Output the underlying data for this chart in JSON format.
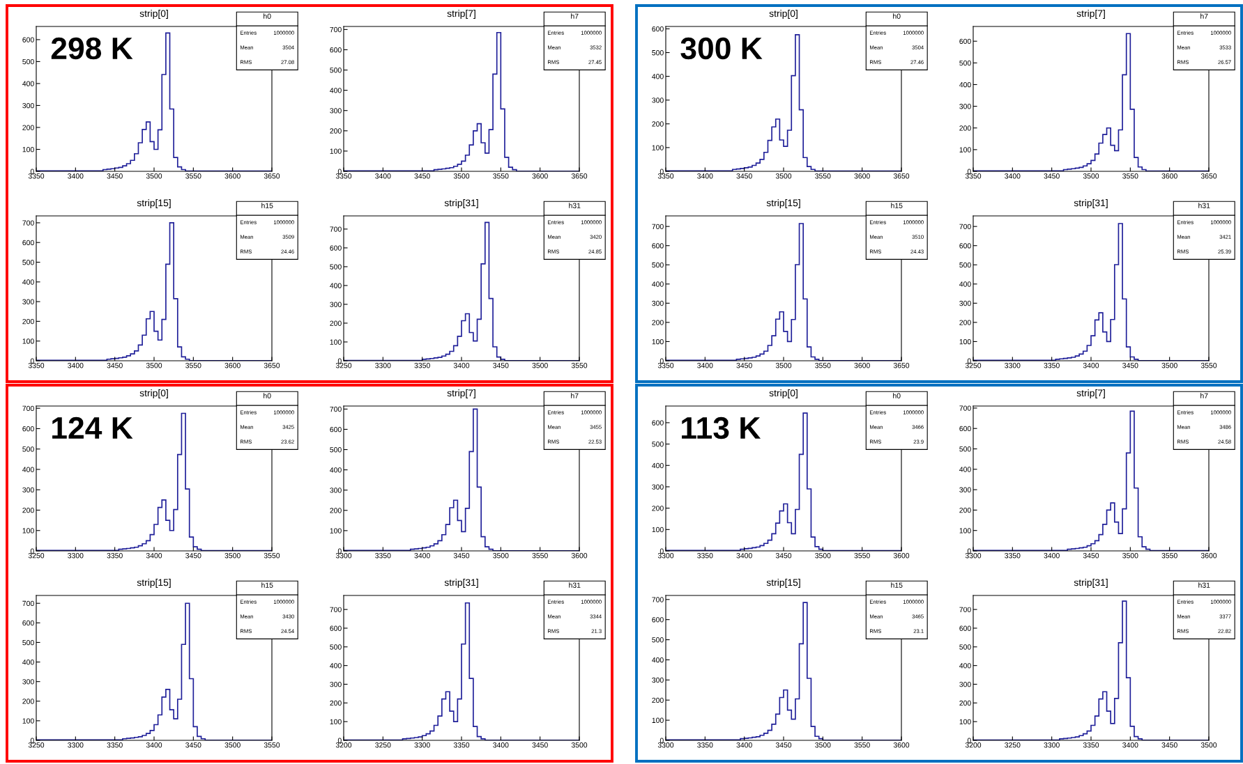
{
  "chart_data": [
    {
      "type": "histogram",
      "title": "strip[0]",
      "color": "#1f1f99",
      "xlim": [
        3350,
        3650
      ],
      "xticks": [
        3350,
        3400,
        3450,
        3500,
        3550,
        3600,
        3650
      ],
      "ylim": [
        0,
        660
      ],
      "yticks": [
        0,
        100,
        200,
        300,
        400,
        500,
        600
      ],
      "grid": false,
      "annotations": [
        "h0",
        "Entries",
        "1000000",
        "Mean",
        "3504",
        "RMS",
        "27.08",
        "298 K"
      ],
      "bins": [
        3350,
        3435,
        3440,
        3445,
        3450,
        3455,
        3460,
        3465,
        3470,
        3475,
        3480,
        3485,
        3490,
        3495,
        3500,
        3505,
        3510,
        3515,
        3520,
        3525,
        3530,
        3535,
        3540,
        3650
      ],
      "values": [
        2,
        8,
        10,
        12,
        15,
        18,
        25,
        35,
        50,
        80,
        130,
        191,
        225,
        135,
        100,
        189,
        441,
        630,
        284,
        63,
        20,
        8,
        1
      ]
    },
    {
      "type": "histogram",
      "title": "strip[7]",
      "color": "#1f1f99",
      "xlim": [
        3350,
        3650
      ],
      "xticks": [
        3350,
        3400,
        3450,
        3500,
        3550,
        3600,
        3650
      ],
      "ylim": [
        0,
        715
      ],
      "yticks": [
        0,
        100,
        200,
        300,
        400,
        500,
        600,
        700
      ],
      "grid": false,
      "annotations": [
        "h7",
        "Entries",
        "1000000",
        "Mean",
        "3532",
        "RMS",
        "27.45"
      ],
      "bins": [
        3350,
        3465,
        3470,
        3475,
        3480,
        3485,
        3490,
        3495,
        3500,
        3505,
        3510,
        3515,
        3520,
        3525,
        3530,
        3535,
        3540,
        3545,
        3550,
        3555,
        3560,
        3565,
        3570,
        3650
      ],
      "values": [
        2,
        8,
        10,
        12,
        15,
        18,
        25,
        35,
        50,
        80,
        130,
        200,
        235,
        141,
        90,
        206,
        480,
        685,
        308,
        69,
        20,
        8,
        1
      ]
    },
    {
      "type": "histogram",
      "title": "strip[15]",
      "color": "#1f1f99",
      "xlim": [
        3350,
        3650
      ],
      "xticks": [
        3350,
        3400,
        3450,
        3500,
        3550,
        3600,
        3650
      ],
      "ylim": [
        0,
        735
      ],
      "yticks": [
        0,
        100,
        200,
        300,
        400,
        500,
        600,
        700
      ],
      "grid": false,
      "annotations": [
        "h15",
        "Entries",
        "1000000",
        "Mean",
        "3509",
        "RMS",
        "24.46"
      ],
      "bins": [
        3350,
        3440,
        3445,
        3450,
        3455,
        3460,
        3465,
        3470,
        3475,
        3480,
        3485,
        3490,
        3495,
        3500,
        3505,
        3510,
        3515,
        3520,
        3525,
        3530,
        3535,
        3540,
        3545,
        3650
      ],
      "values": [
        2,
        8,
        10,
        12,
        15,
        18,
        25,
        35,
        50,
        80,
        130,
        213,
        250,
        150,
        105,
        210,
        490,
        700,
        315,
        70,
        20,
        8,
        1
      ]
    },
    {
      "type": "histogram",
      "title": "strip[31]",
      "color": "#1f1f99",
      "xlim": [
        3250,
        3550
      ],
      "xticks": [
        3250,
        3300,
        3350,
        3400,
        3450,
        3500,
        3550
      ],
      "ylim": [
        0,
        770
      ],
      "yticks": [
        0,
        100,
        200,
        300,
        400,
        500,
        600,
        700
      ],
      "grid": false,
      "annotations": [
        "h31",
        "Entries",
        "1000000",
        "Mean",
        "3420",
        "RMS",
        "24.85"
      ],
      "bins": [
        3250,
        3350,
        3355,
        3360,
        3365,
        3370,
        3375,
        3380,
        3385,
        3390,
        3395,
        3400,
        3405,
        3410,
        3415,
        3420,
        3425,
        3430,
        3435,
        3440,
        3445,
        3450,
        3455,
        3550
      ],
      "values": [
        2,
        8,
        10,
        12,
        15,
        18,
        25,
        35,
        50,
        80,
        130,
        213,
        250,
        150,
        105,
        221,
        515,
        735,
        331,
        74,
        20,
        8,
        1
      ]
    },
    {
      "type": "histogram",
      "title": "strip[0]",
      "color": "#1f1f99",
      "xlim": [
        3350,
        3650
      ],
      "xticks": [
        3350,
        3400,
        3450,
        3500,
        3550,
        3600,
        3650
      ],
      "ylim": [
        0,
        610
      ],
      "yticks": [
        0,
        100,
        200,
        300,
        400,
        500,
        600
      ],
      "grid": false,
      "annotations": [
        "h0",
        "Entries",
        "1000000",
        "Mean",
        "3504",
        "RMS",
        "27.46",
        "300 K"
      ],
      "bins": [
        3350,
        3435,
        3440,
        3445,
        3450,
        3455,
        3460,
        3465,
        3470,
        3475,
        3480,
        3485,
        3490,
        3495,
        3500,
        3505,
        3510,
        3515,
        3520,
        3525,
        3530,
        3535,
        3540,
        3650
      ],
      "values": [
        2,
        8,
        10,
        12,
        15,
        18,
        25,
        35,
        50,
        80,
        130,
        187,
        220,
        132,
        105,
        173,
        403,
        575,
        259,
        58,
        20,
        8,
        1
      ]
    },
    {
      "type": "histogram",
      "title": "strip[7]",
      "color": "#1f1f99",
      "xlim": [
        3350,
        3650
      ],
      "xticks": [
        3350,
        3400,
        3450,
        3500,
        3550,
        3600,
        3650
      ],
      "ylim": [
        0,
        668
      ],
      "yticks": [
        0,
        100,
        200,
        300,
        400,
        500,
        600
      ],
      "grid": false,
      "annotations": [
        "h7",
        "Entries",
        "1000000",
        "Mean",
        "3533",
        "RMS",
        "26.57"
      ],
      "bins": [
        3350,
        3465,
        3470,
        3475,
        3480,
        3485,
        3490,
        3495,
        3500,
        3505,
        3510,
        3515,
        3520,
        3525,
        3530,
        3535,
        3540,
        3545,
        3550,
        3555,
        3560,
        3565,
        3570,
        3650
      ],
      "values": [
        2,
        8,
        10,
        12,
        15,
        18,
        25,
        35,
        50,
        80,
        130,
        170,
        200,
        120,
        95,
        191,
        445,
        635,
        286,
        64,
        20,
        8,
        1
      ]
    },
    {
      "type": "histogram",
      "title": "strip[15]",
      "color": "#1f1f99",
      "xlim": [
        3350,
        3650
      ],
      "xticks": [
        3350,
        3400,
        3450,
        3500,
        3550,
        3600,
        3650
      ],
      "ylim": [
        0,
        755
      ],
      "yticks": [
        0,
        100,
        200,
        300,
        400,
        500,
        600,
        700
      ],
      "grid": false,
      "annotations": [
        "h15",
        "Entries",
        "1000000",
        "Mean",
        "3510",
        "RMS",
        "24.43"
      ],
      "bins": [
        3350,
        3440,
        3445,
        3450,
        3455,
        3460,
        3465,
        3470,
        3475,
        3480,
        3485,
        3490,
        3495,
        3500,
        3505,
        3510,
        3515,
        3520,
        3525,
        3530,
        3535,
        3540,
        3545,
        3650
      ],
      "values": [
        2,
        8,
        10,
        12,
        15,
        18,
        25,
        35,
        50,
        80,
        130,
        217,
        255,
        153,
        100,
        215,
        501,
        715,
        322,
        72,
        20,
        8,
        1
      ]
    },
    {
      "type": "histogram",
      "title": "strip[31]",
      "color": "#1f1f99",
      "xlim": [
        3250,
        3550
      ],
      "xticks": [
        3250,
        3300,
        3350,
        3400,
        3450,
        3500,
        3550
      ],
      "ylim": [
        0,
        755
      ],
      "yticks": [
        0,
        100,
        200,
        300,
        400,
        500,
        600,
        700
      ],
      "grid": false,
      "annotations": [
        "h31",
        "Entries",
        "1000000",
        "Mean",
        "3421",
        "RMS",
        "25.39"
      ],
      "bins": [
        3250,
        3355,
        3360,
        3365,
        3370,
        3375,
        3380,
        3385,
        3390,
        3395,
        3400,
        3405,
        3410,
        3415,
        3420,
        3425,
        3430,
        3435,
        3440,
        3445,
        3450,
        3455,
        3460,
        3550
      ],
      "values": [
        2,
        8,
        10,
        12,
        15,
        18,
        25,
        35,
        50,
        80,
        130,
        213,
        250,
        150,
        100,
        215,
        501,
        715,
        322,
        72,
        20,
        8,
        1
      ]
    },
    {
      "type": "histogram",
      "title": "strip[0]",
      "color": "#1f1f99",
      "xlim": [
        3250,
        3550
      ],
      "xticks": [
        3250,
        3300,
        3350,
        3400,
        3450,
        3500,
        3550
      ],
      "ylim": [
        0,
        711
      ],
      "yticks": [
        0,
        100,
        200,
        300,
        400,
        500,
        600,
        700
      ],
      "grid": false,
      "annotations": [
        "h0",
        "Entries",
        "1000000",
        "Mean",
        "3425",
        "RMS",
        "23.62",
        "124 K"
      ],
      "bins": [
        3250,
        3355,
        3360,
        3365,
        3370,
        3375,
        3380,
        3385,
        3390,
        3395,
        3400,
        3405,
        3410,
        3415,
        3420,
        3425,
        3430,
        3435,
        3440,
        3445,
        3450,
        3455,
        3460,
        3550
      ],
      "values": [
        2,
        8,
        10,
        12,
        15,
        18,
        25,
        35,
        50,
        80,
        130,
        213,
        250,
        150,
        100,
        203,
        473,
        675,
        304,
        68,
        20,
        8,
        1
      ]
    },
    {
      "type": "histogram",
      "title": "strip[7]",
      "color": "#1f1f99",
      "xlim": [
        3300,
        3600
      ],
      "xticks": [
        3300,
        3350,
        3400,
        3450,
        3500,
        3550,
        3600
      ],
      "ylim": [
        0,
        715
      ],
      "yticks": [
        0,
        100,
        200,
        300,
        400,
        500,
        600,
        700
      ],
      "grid": false,
      "annotations": [
        "h7",
        "Entries",
        "1000000",
        "Mean",
        "3455",
        "RMS",
        "22.53"
      ],
      "bins": [
        3300,
        3385,
        3390,
        3395,
        3400,
        3405,
        3410,
        3415,
        3420,
        3425,
        3430,
        3435,
        3440,
        3445,
        3450,
        3455,
        3460,
        3465,
        3470,
        3475,
        3480,
        3485,
        3490,
        3600
      ],
      "values": [
        2,
        8,
        10,
        12,
        15,
        18,
        25,
        35,
        50,
        80,
        130,
        213,
        250,
        150,
        95,
        210,
        490,
        700,
        315,
        70,
        20,
        8,
        1
      ]
    },
    {
      "type": "histogram",
      "title": "strip[15]",
      "color": "#1f1f99",
      "xlim": [
        3250,
        3550
      ],
      "xticks": [
        3250,
        3300,
        3350,
        3400,
        3450,
        3500,
        3550
      ],
      "ylim": [
        0,
        740
      ],
      "yticks": [
        0,
        100,
        200,
        300,
        400,
        500,
        600,
        700
      ],
      "grid": false,
      "annotations": [
        "h15",
        "Entries",
        "1000000",
        "Mean",
        "3430",
        "RMS",
        "24.54"
      ],
      "bins": [
        3250,
        3360,
        3365,
        3370,
        3375,
        3380,
        3385,
        3390,
        3395,
        3400,
        3405,
        3410,
        3415,
        3420,
        3425,
        3430,
        3435,
        3440,
        3445,
        3450,
        3455,
        3460,
        3465,
        3550
      ],
      "values": [
        2,
        8,
        10,
        12,
        15,
        18,
        25,
        35,
        50,
        80,
        130,
        221,
        260,
        156,
        110,
        210,
        490,
        700,
        315,
        70,
        20,
        8,
        1
      ]
    },
    {
      "type": "histogram",
      "title": "strip[31]",
      "color": "#1f1f99",
      "xlim": [
        3200,
        3500
      ],
      "xticks": [
        3200,
        3250,
        3300,
        3350,
        3400,
        3450,
        3500
      ],
      "ylim": [
        0,
        775
      ],
      "yticks": [
        0,
        100,
        200,
        300,
        400,
        500,
        600,
        700
      ],
      "grid": false,
      "annotations": [
        "h31",
        "Entries",
        "1000000",
        "Mean",
        "3344",
        "RMS",
        "21.3"
      ],
      "bins": [
        3200,
        3275,
        3280,
        3285,
        3290,
        3295,
        3300,
        3305,
        3310,
        3315,
        3320,
        3325,
        3330,
        3335,
        3340,
        3345,
        3350,
        3355,
        3360,
        3365,
        3370,
        3375,
        3380,
        3500
      ],
      "values": [
        2,
        8,
        10,
        12,
        15,
        18,
        25,
        35,
        50,
        80,
        130,
        221,
        260,
        156,
        100,
        221,
        515,
        735,
        331,
        74,
        20,
        8,
        1
      ]
    },
    {
      "type": "histogram",
      "title": "strip[0]",
      "color": "#1f1f99",
      "xlim": [
        3300,
        3600
      ],
      "xticks": [
        3300,
        3350,
        3400,
        3450,
        3500,
        3550,
        3600
      ],
      "ylim": [
        0,
        678
      ],
      "yticks": [
        0,
        100,
        200,
        300,
        400,
        500,
        600
      ],
      "grid": false,
      "annotations": [
        "h0",
        "Entries",
        "1000000",
        "Mean",
        "3466",
        "RMS",
        "23.9",
        "113 K"
      ],
      "bins": [
        3300,
        3395,
        3400,
        3405,
        3410,
        3415,
        3420,
        3425,
        3430,
        3435,
        3440,
        3445,
        3450,
        3455,
        3460,
        3465,
        3470,
        3475,
        3480,
        3485,
        3490,
        3495,
        3500,
        3600
      ],
      "values": [
        2,
        8,
        10,
        12,
        15,
        18,
        25,
        35,
        50,
        80,
        130,
        187,
        220,
        132,
        80,
        194,
        452,
        645,
        290,
        65,
        20,
        8,
        1
      ]
    },
    {
      "type": "histogram",
      "title": "strip[7]",
      "color": "#1f1f99",
      "xlim": [
        3300,
        3600
      ],
      "xticks": [
        3300,
        3350,
        3400,
        3450,
        3500,
        3550,
        3600
      ],
      "ylim": [
        0,
        710
      ],
      "yticks": [
        0,
        100,
        200,
        300,
        400,
        500,
        600,
        700
      ],
      "grid": false,
      "annotations": [
        "h7",
        "Entries",
        "1000000",
        "Mean",
        "3486",
        "RMS",
        "24.58"
      ],
      "bins": [
        3300,
        3420,
        3425,
        3430,
        3435,
        3440,
        3445,
        3450,
        3455,
        3460,
        3465,
        3470,
        3475,
        3480,
        3485,
        3490,
        3495,
        3500,
        3505,
        3510,
        3515,
        3520,
        3525,
        3600
      ],
      "values": [
        2,
        8,
        10,
        12,
        15,
        18,
        25,
        35,
        50,
        80,
        130,
        200,
        235,
        141,
        85,
        206,
        480,
        685,
        308,
        69,
        20,
        8,
        1
      ]
    },
    {
      "type": "histogram",
      "title": "strip[15]",
      "color": "#1f1f99",
      "xlim": [
        3300,
        3600
      ],
      "xticks": [
        3300,
        3350,
        3400,
        3450,
        3500,
        3550,
        3600
      ],
      "ylim": [
        0,
        720
      ],
      "yticks": [
        0,
        100,
        200,
        300,
        400,
        500,
        600,
        700
      ],
      "grid": false,
      "annotations": [
        "h15",
        "Entries",
        "1000000",
        "Mean",
        "3465",
        "RMS",
        "23.1"
      ],
      "bins": [
        3300,
        3395,
        3400,
        3405,
        3410,
        3415,
        3420,
        3425,
        3430,
        3435,
        3440,
        3445,
        3450,
        3455,
        3460,
        3465,
        3470,
        3475,
        3480,
        3485,
        3490,
        3495,
        3500,
        3600
      ],
      "values": [
        2,
        8,
        10,
        12,
        15,
        18,
        25,
        35,
        50,
        80,
        130,
        213,
        250,
        150,
        105,
        206,
        480,
        685,
        308,
        69,
        20,
        8,
        1
      ]
    },
    {
      "type": "histogram",
      "title": "strip[31]",
      "color": "#1f1f99",
      "xlim": [
        3200,
        3500
      ],
      "xticks": [
        3200,
        3250,
        3300,
        3350,
        3400,
        3450,
        3500
      ],
      "ylim": [
        0,
        775
      ],
      "yticks": [
        0,
        100,
        200,
        300,
        400,
        500,
        600,
        700
      ],
      "grid": false,
      "annotations": [
        "h31",
        "Entries",
        "1000000",
        "Mean",
        "3377",
        "RMS",
        "22.82"
      ],
      "bins": [
        3200,
        3310,
        3315,
        3320,
        3325,
        3330,
        3335,
        3340,
        3345,
        3350,
        3355,
        3360,
        3365,
        3370,
        3375,
        3380,
        3385,
        3390,
        3395,
        3400,
        3405,
        3410,
        3415,
        3500
      ],
      "values": [
        2,
        8,
        10,
        12,
        15,
        18,
        25,
        35,
        50,
        80,
        130,
        221,
        260,
        156,
        90,
        224,
        522,
        745,
        335,
        75,
        20,
        8,
        1
      ]
    }
  ]
}
